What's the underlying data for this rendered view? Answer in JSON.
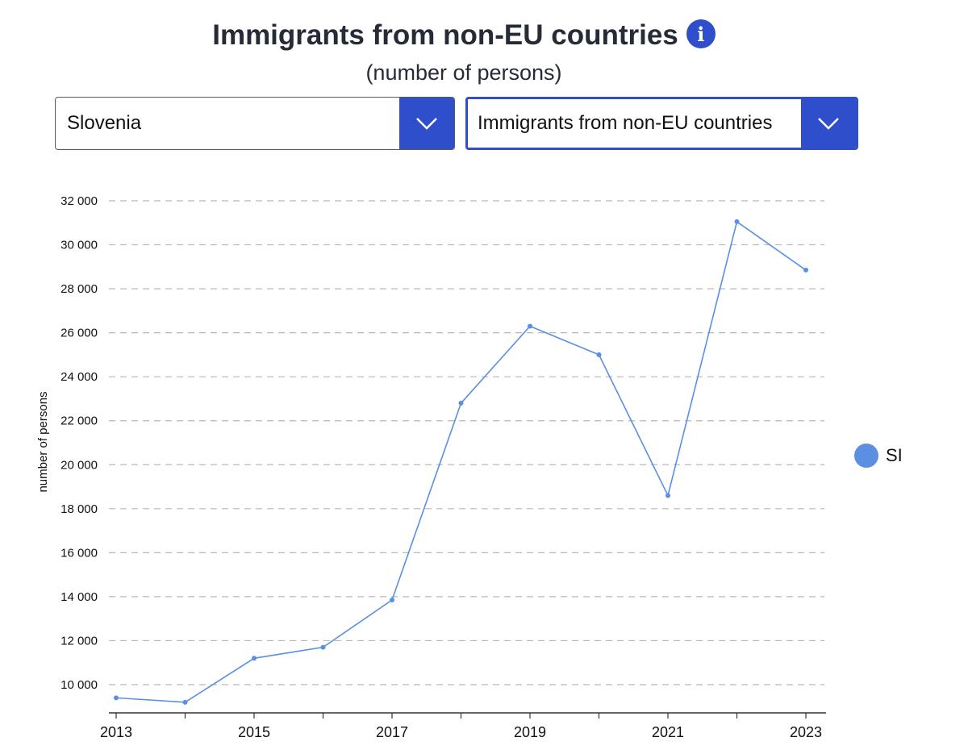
{
  "header": {
    "title": "Immigrants from non-EU countries",
    "subtitle": "(number of persons)",
    "info_icon_glyph": "i"
  },
  "filters": {
    "country": {
      "selected": "Slovenia"
    },
    "indicator": {
      "selected": "Immigrants from non-EU countries"
    }
  },
  "colors": {
    "accent": "#2f4ecb",
    "series": "#5a8fe2",
    "grid": "#b8b8b8",
    "axis": "#333333"
  },
  "legend": {
    "label": "SI"
  },
  "chart_data": {
    "type": "line",
    "title": "Immigrants from non-EU countries",
    "subtitle": "(number of persons)",
    "xlabel": "",
    "ylabel": "number of persons",
    "x": [
      2013,
      2014,
      2015,
      2016,
      2017,
      2018,
      2019,
      2020,
      2021,
      2022,
      2023
    ],
    "x_tick_labels": [
      "2013",
      "2015",
      "2017",
      "2019",
      "2021",
      "2023"
    ],
    "y_tick_labels": [
      "10 000",
      "12 000",
      "14 000",
      "16 000",
      "18 000",
      "20 000",
      "22 000",
      "24 000",
      "26 000",
      "28 000",
      "30 000",
      "32 000"
    ],
    "y_ticks": [
      10000,
      12000,
      14000,
      16000,
      18000,
      20000,
      22000,
      24000,
      26000,
      28000,
      30000,
      32000
    ],
    "ylim": [
      8800,
      32000
    ],
    "xlim": [
      2013,
      2023
    ],
    "grid": true,
    "legend_position": "right",
    "series": [
      {
        "name": "SI",
        "values": [
          9400,
          9200,
          11200,
          11700,
          13850,
          22800,
          26300,
          25000,
          18600,
          31050,
          28850
        ]
      }
    ]
  }
}
